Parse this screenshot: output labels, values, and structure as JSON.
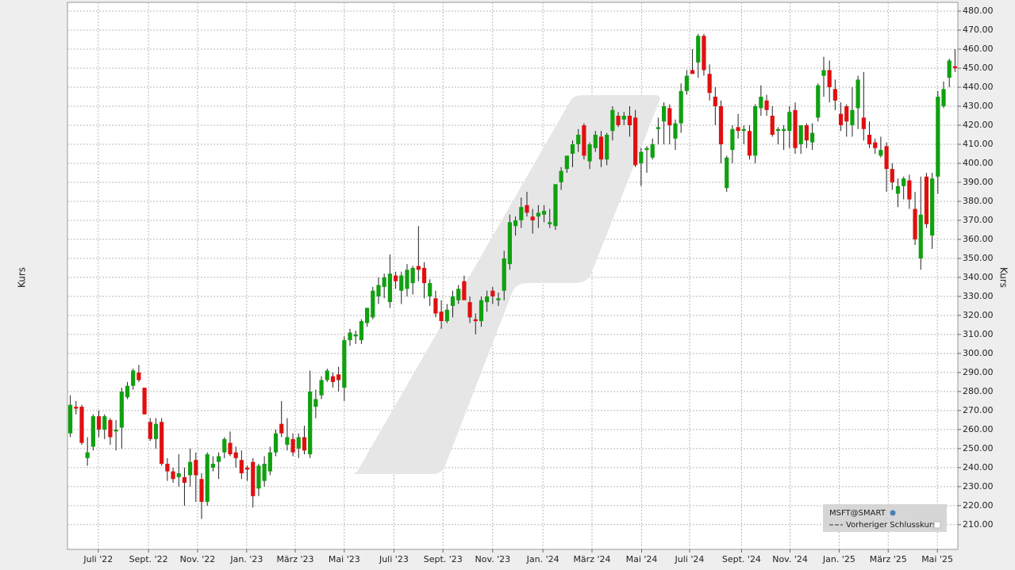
{
  "chart_data": {
    "type": "candlestick",
    "y_label": "Kurs",
    "series_name": "MSFT@SMART",
    "reference_label": "Vorheriger Schlusskurs",
    "up_color": "#10a010",
    "down_color": "#e01010",
    "grid": true,
    "ylim": [
      197,
      484.6
    ],
    "xlim": [
      -0.5,
      155.5
    ],
    "yticks": [
      {
        "value": 210,
        "label": "210.00"
      },
      {
        "value": 220,
        "label": "220.00"
      },
      {
        "value": 230,
        "label": "230.00"
      },
      {
        "value": 240,
        "label": "240.00"
      },
      {
        "value": 250,
        "label": "250.00"
      },
      {
        "value": 260,
        "label": "260.00"
      },
      {
        "value": 270,
        "label": "270.00"
      },
      {
        "value": 280,
        "label": "280.00"
      },
      {
        "value": 290,
        "label": "290.00"
      },
      {
        "value": 300,
        "label": "300.00"
      },
      {
        "value": 310,
        "label": "310.00"
      },
      {
        "value": 320,
        "label": "320.00"
      },
      {
        "value": 330,
        "label": "330.00"
      },
      {
        "value": 340,
        "label": "340.00"
      },
      {
        "value": 350,
        "label": "350.00"
      },
      {
        "value": 360,
        "label": "360.00"
      },
      {
        "value": 370,
        "label": "370.00"
      },
      {
        "value": 380,
        "label": "380.00"
      },
      {
        "value": 390,
        "label": "390.00"
      },
      {
        "value": 400,
        "label": "400.00"
      },
      {
        "value": 410,
        "label": "410.00"
      },
      {
        "value": 420,
        "label": "420.00"
      },
      {
        "value": 430,
        "label": "430.00"
      },
      {
        "value": 440,
        "label": "440.00"
      },
      {
        "value": 450,
        "label": "450.00"
      },
      {
        "value": 460,
        "label": "460.00"
      },
      {
        "value": 470,
        "label": "470.00"
      },
      {
        "value": 480,
        "label": "480.00"
      }
    ],
    "xticks": [
      {
        "value": 4.9,
        "label": "Juli '22"
      },
      {
        "value": 13.7,
        "label": "Sept. '22"
      },
      {
        "value": 22.3,
        "label": "Nov. '22"
      },
      {
        "value": 30.9,
        "label": "Jan. '23"
      },
      {
        "value": 39.4,
        "label": "März '23"
      },
      {
        "value": 48.0,
        "label": "Mai '23"
      },
      {
        "value": 56.7,
        "label": "Juli '23"
      },
      {
        "value": 65.3,
        "label": "Sept. '23"
      },
      {
        "value": 74.0,
        "label": "Nov. '23"
      },
      {
        "value": 82.8,
        "label": "Jan. '24"
      },
      {
        "value": 91.4,
        "label": "März '24"
      },
      {
        "value": 100.1,
        "label": "Mai '24"
      },
      {
        "value": 108.5,
        "label": "Juli '24"
      },
      {
        "value": 117.6,
        "label": "Sept. '24"
      },
      {
        "value": 126.1,
        "label": "Nov. '24"
      },
      {
        "value": 134.7,
        "label": "Jan. '25"
      },
      {
        "value": 143.3,
        "label": "März '25"
      },
      {
        "value": 151.9,
        "label": "Mai '25"
      }
    ],
    "ohlc": [
      [
        258,
        278,
        256,
        273
      ],
      [
        272,
        275,
        268,
        271
      ],
      [
        272,
        273,
        252,
        253
      ],
      [
        245,
        256,
        241,
        248
      ],
      [
        251,
        268,
        249,
        267
      ],
      [
        267,
        270,
        256,
        260
      ],
      [
        260,
        268,
        255,
        267
      ],
      [
        265,
        266,
        252,
        256
      ],
      [
        259,
        265,
        249,
        260
      ],
      [
        261,
        282,
        250,
        280
      ],
      [
        277,
        285,
        276,
        283
      ],
      [
        283,
        292,
        281,
        291
      ],
      [
        290,
        294,
        285,
        286
      ],
      [
        282,
        282,
        268,
        268
      ],
      [
        264,
        266,
        254,
        255
      ],
      [
        255,
        266,
        250,
        263
      ],
      [
        264,
        266,
        241,
        242
      ],
      [
        242,
        245,
        233,
        238
      ],
      [
        238,
        240,
        232,
        234
      ],
      [
        235,
        247,
        230,
        237
      ],
      [
        235,
        240,
        220,
        232
      ],
      [
        236,
        250,
        230,
        243
      ],
      [
        244,
        248,
        222,
        236
      ],
      [
        234,
        237,
        213,
        222
      ],
      [
        222,
        248,
        220,
        247
      ],
      [
        240,
        246,
        238,
        242
      ],
      [
        243,
        248,
        234,
        246
      ],
      [
        248,
        256,
        245,
        255
      ],
      [
        253,
        259,
        246,
        247
      ],
      [
        248,
        251,
        240,
        245
      ],
      [
        244,
        249,
        234,
        237
      ],
      [
        240,
        241,
        233,
        239
      ],
      [
        243,
        245,
        219,
        225
      ],
      [
        229,
        242,
        225,
        241
      ],
      [
        233,
        246,
        230,
        242
      ],
      [
        238,
        251,
        236,
        248
      ],
      [
        248,
        260,
        246,
        258
      ],
      [
        263,
        275,
        256,
        258
      ],
      [
        252,
        266,
        249,
        256
      ],
      [
        255,
        258,
        246,
        248
      ],
      [
        250,
        258,
        245,
        256
      ],
      [
        256,
        262,
        247,
        249
      ],
      [
        247,
        291,
        245,
        280
      ],
      [
        272,
        281,
        266,
        276
      ],
      [
        278,
        288,
        276,
        286
      ],
      [
        286,
        292,
        285,
        291
      ],
      [
        288,
        290,
        282,
        285
      ],
      [
        289,
        293,
        280,
        286
      ],
      [
        282,
        309,
        275,
        307
      ],
      [
        307,
        313,
        304,
        311
      ],
      [
        309,
        312,
        305,
        310
      ],
      [
        307,
        318,
        305,
        317
      ],
      [
        316,
        324,
        314,
        324
      ],
      [
        319,
        335,
        318,
        333
      ],
      [
        330,
        340,
        326,
        336
      ],
      [
        335,
        342,
        329,
        340
      ],
      [
        327,
        352,
        324,
        342
      ],
      [
        341,
        343,
        334,
        338
      ],
      [
        333,
        343,
        326,
        341
      ],
      [
        334,
        347,
        330,
        344
      ],
      [
        337,
        346,
        331,
        345
      ],
      [
        346,
        367,
        338,
        344
      ],
      [
        345,
        348,
        329,
        337
      ],
      [
        330,
        339,
        325,
        337
      ],
      [
        329,
        333,
        319,
        321
      ],
      [
        322,
        328,
        313,
        317
      ],
      [
        317,
        326,
        316,
        323
      ],
      [
        325,
        333,
        319,
        330
      ],
      [
        328,
        336,
        326,
        334
      ],
      [
        338,
        341,
        329,
        328
      ],
      [
        327,
        330,
        316,
        319
      ],
      [
        318,
        321,
        310,
        317
      ],
      [
        317,
        330,
        314,
        328
      ],
      [
        327,
        333,
        322,
        330
      ],
      [
        333,
        335,
        326,
        330
      ],
      [
        328,
        332,
        325,
        329
      ],
      [
        333,
        354,
        328,
        350
      ],
      [
        347,
        373,
        344,
        369
      ],
      [
        367,
        372,
        362,
        370
      ],
      [
        370,
        382,
        366,
        377
      ],
      [
        378,
        385,
        372,
        374
      ],
      [
        372,
        376,
        363,
        370
      ],
      [
        372,
        378,
        366,
        374
      ],
      [
        373,
        378,
        369,
        375
      ],
      [
        368,
        376,
        366,
        369
      ],
      [
        367,
        389,
        365,
        389
      ],
      [
        390,
        398,
        386,
        396
      ],
      [
        397,
        404,
        395,
        404
      ],
      [
        405,
        412,
        398,
        410
      ],
      [
        410,
        418,
        406,
        415
      ],
      [
        420,
        421,
        402,
        404
      ],
      [
        401,
        411,
        397,
        410
      ],
      [
        408,
        417,
        406,
        415
      ],
      [
        414,
        417,
        398,
        402
      ],
      [
        402,
        416,
        399,
        415
      ],
      [
        417,
        430,
        412,
        428
      ],
      [
        425,
        427,
        419,
        420
      ],
      [
        423,
        427,
        420,
        425
      ],
      [
        425,
        430,
        414,
        420
      ],
      [
        424,
        428,
        398,
        399
      ],
      [
        400,
        408,
        388,
        406
      ],
      [
        407,
        409,
        395,
        408
      ],
      [
        403,
        413,
        402,
        410
      ],
      [
        418,
        424,
        410,
        419
      ],
      [
        422,
        432,
        410,
        430
      ],
      [
        429,
        431,
        410,
        420
      ],
      [
        413,
        423,
        407,
        421
      ],
      [
        421,
        442,
        416,
        438
      ],
      [
        438,
        449,
        436,
        446
      ],
      [
        449,
        460,
        447,
        447
      ],
      [
        453,
        468,
        445,
        467
      ],
      [
        467,
        468,
        446,
        449
      ],
      [
        447,
        452,
        433,
        437
      ],
      [
        435,
        440,
        420,
        430
      ],
      [
        430,
        433,
        400,
        410
      ],
      [
        387,
        404,
        385,
        403
      ],
      [
        407,
        420,
        400,
        418
      ],
      [
        419,
        426,
        413,
        417
      ],
      [
        417,
        420,
        410,
        418
      ],
      [
        417,
        420,
        402,
        404
      ],
      [
        404,
        431,
        400,
        430
      ],
      [
        429,
        441,
        425,
        435
      ],
      [
        433,
        436,
        425,
        428
      ],
      [
        425,
        430,
        414,
        415
      ],
      [
        417,
        419,
        410,
        418
      ],
      [
        417,
        420,
        407,
        418
      ],
      [
        417,
        430,
        408,
        427
      ],
      [
        428,
        432,
        405,
        408
      ],
      [
        410,
        420,
        405,
        420
      ],
      [
        420,
        421,
        408,
        412
      ],
      [
        411,
        421,
        407,
        416
      ],
      [
        424,
        442,
        422,
        441
      ],
      [
        446,
        456,
        435,
        449
      ],
      [
        449,
        454,
        432,
        440
      ],
      [
        439,
        444,
        428,
        433
      ],
      [
        426,
        432,
        417,
        420
      ],
      [
        430,
        431,
        414,
        422
      ],
      [
        420,
        440,
        414,
        428
      ],
      [
        429,
        446,
        418,
        444
      ],
      [
        424,
        448,
        412,
        418
      ],
      [
        415,
        422,
        408,
        410
      ],
      [
        411,
        413,
        405,
        408
      ],
      [
        404,
        414,
        403,
        407
      ],
      [
        409,
        411,
        385,
        397
      ],
      [
        397,
        400,
        386,
        390
      ],
      [
        384,
        392,
        377,
        388
      ],
      [
        388,
        393,
        381,
        392
      ],
      [
        391,
        394,
        376,
        381
      ],
      [
        376,
        385,
        357,
        360
      ],
      [
        350,
        393,
        344,
        373
      ],
      [
        393,
        395,
        366,
        368
      ],
      [
        362,
        395,
        355,
        392
      ],
      [
        393,
        438,
        384,
        435
      ],
      [
        430,
        443,
        429,
        439
      ],
      [
        445,
        455,
        440,
        454
      ],
      [
        451,
        460,
        448,
        450
      ]
    ]
  }
}
